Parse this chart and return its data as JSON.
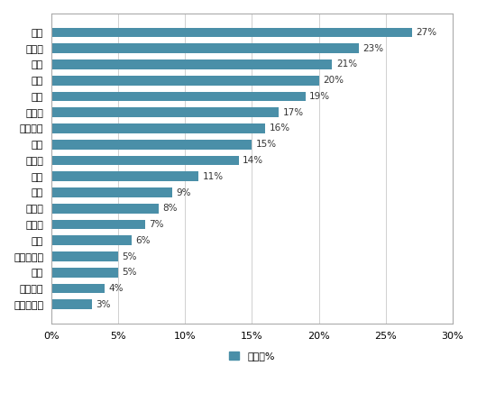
{
  "categories": [
    "沙特阿拉伯",
    "巴基斯坦",
    "南非",
    "印度尼西亚",
    "印度",
    "墨西哥",
    "土耳其",
    "巴西",
    "中国",
    "俄罗斯",
    "美国",
    "澳大利亚",
    "加拿大",
    "英国",
    "法国",
    "德国",
    "意大利",
    "日本"
  ],
  "values": [
    3,
    4,
    5,
    5,
    6,
    7,
    8,
    9,
    11,
    14,
    15,
    16,
    17,
    19,
    20,
    21,
    23,
    27
  ],
  "bar_color": "#4a8fa8",
  "legend_label": "老龄化%",
  "xlim": [
    0,
    30
  ],
  "xticks": [
    0,
    5,
    10,
    15,
    20,
    25,
    30
  ],
  "xticklabels": [
    "0%",
    "5%",
    "10%",
    "15%",
    "20%",
    "25%",
    "30%"
  ],
  "background_color": "#ffffff",
  "grid_color": "#d0d0d0"
}
